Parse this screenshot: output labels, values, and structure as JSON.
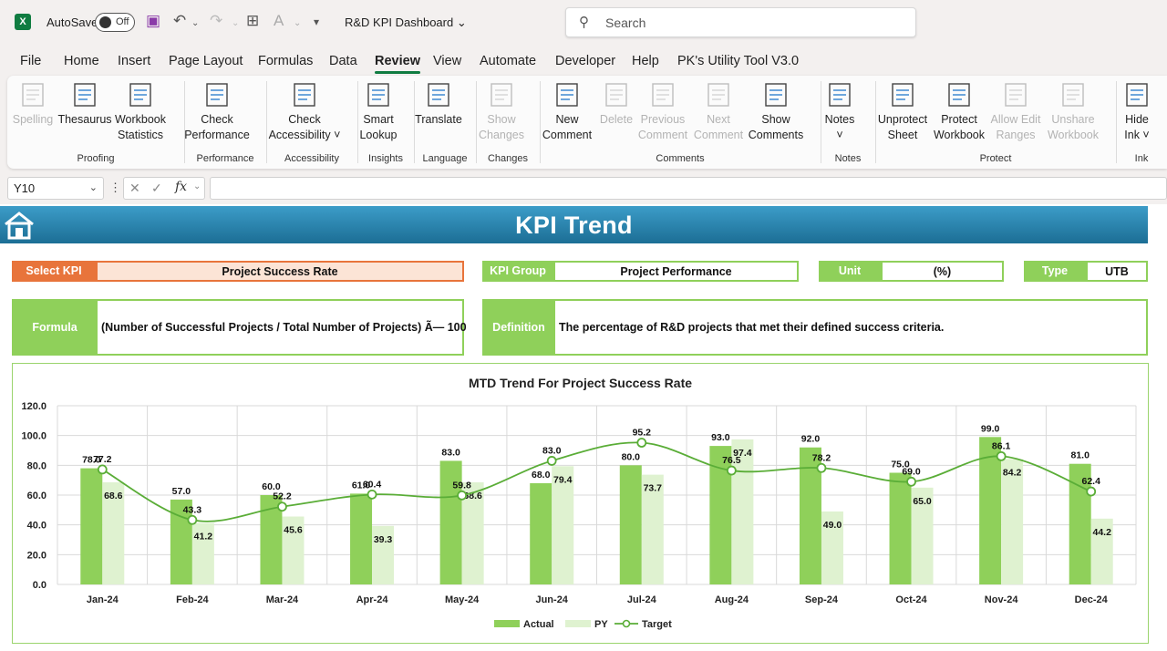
{
  "app": {
    "autosave_label": "AutoSave",
    "autosave_state": "Off",
    "doc_title": "R&D KPI Dashboard",
    "search_placeholder": "Search"
  },
  "menu": [
    "File",
    "Home",
    "Insert",
    "Page Layout",
    "Formulas",
    "Data",
    "Review",
    "View",
    "Automate",
    "Developer",
    "Help",
    "PK's Utility Tool V3.0"
  ],
  "menu_active": "Review",
  "ribbon": {
    "buttons": [
      {
        "label1": "Spelling",
        "label2": "",
        "icon": "spelling-icon",
        "enabled": false
      },
      {
        "label1": "Thesaurus",
        "label2": "",
        "icon": "thesaurus-icon",
        "enabled": true
      },
      {
        "label1": "Workbook",
        "label2": "Statistics",
        "icon": "workbook-statistics-icon",
        "enabled": true
      },
      {
        "label1": "Check",
        "label2": "Performance",
        "icon": "check-performance-icon",
        "enabled": true
      },
      {
        "label1": "Check",
        "label2": "Accessibility ˅",
        "icon": "accessibility-icon",
        "enabled": true
      },
      {
        "label1": "Smart",
        "label2": "Lookup",
        "icon": "smart-lookup-icon",
        "enabled": true
      },
      {
        "label1": "Translate",
        "label2": "",
        "icon": "translate-icon",
        "enabled": true
      },
      {
        "label1": "Show",
        "label2": "Changes",
        "icon": "show-changes-icon",
        "enabled": false
      },
      {
        "label1": "New",
        "label2": "Comment",
        "icon": "new-comment-icon",
        "enabled": true
      },
      {
        "label1": "Delete",
        "label2": "",
        "icon": "delete-comment-icon",
        "enabled": false
      },
      {
        "label1": "Previous",
        "label2": "Comment",
        "icon": "previous-comment-icon",
        "enabled": false
      },
      {
        "label1": "Next",
        "label2": "Comment",
        "icon": "next-comment-icon",
        "enabled": false
      },
      {
        "label1": "Show",
        "label2": "Comments",
        "icon": "show-comments-icon",
        "enabled": true
      },
      {
        "label1": "Notes",
        "label2": "˅",
        "icon": "notes-icon",
        "enabled": true
      },
      {
        "label1": "Unprotect",
        "label2": "Sheet",
        "icon": "unprotect-sheet-icon",
        "enabled": true
      },
      {
        "label1": "Protect",
        "label2": "Workbook",
        "icon": "protect-workbook-icon",
        "enabled": true
      },
      {
        "label1": "Allow Edit",
        "label2": "Ranges",
        "icon": "allow-edit-ranges-icon",
        "enabled": false
      },
      {
        "label1": "Unshare",
        "label2": "Workbook",
        "icon": "unshare-workbook-icon",
        "enabled": false
      },
      {
        "label1": "Hide",
        "label2": "Ink ˅",
        "icon": "hide-ink-icon",
        "enabled": true
      }
    ],
    "groups": [
      "Proofing",
      "Performance",
      "Accessibility",
      "Insights",
      "Language",
      "Changes",
      "Comments",
      "Notes",
      "Protect",
      "Ink"
    ]
  },
  "formula_bar": {
    "name_box": "Y10",
    "fx": "fx",
    "formula": ""
  },
  "dashboard": {
    "title": "KPI Trend",
    "select_kpi_label": "Select KPI",
    "select_kpi_value": "Project Success Rate",
    "kpi_group_label": "KPI Group",
    "kpi_group_value": "Project Performance",
    "unit_label": "Unit",
    "unit_value": "(%)",
    "type_label": "Type",
    "type_value": "UTB",
    "formula_label": "Formula",
    "formula_value": "(Number of Successful Projects / Total Number of Projects) Ã— 100",
    "definition_label": "Definition",
    "definition_value": "The percentage of R&D projects that met their defined success criteria."
  },
  "colors": {
    "actual": "#8fd05a",
    "py": "#dff2d0",
    "target": "#5aad37",
    "accent": "#107c41",
    "select_kpi": "#e8743b"
  },
  "chart_data": {
    "type": "bar",
    "title": "MTD Trend For Project Success Rate",
    "categories": [
      "Jan-24",
      "Feb-24",
      "Mar-24",
      "Apr-24",
      "May-24",
      "Jun-24",
      "Jul-24",
      "Aug-24",
      "Sep-24",
      "Oct-24",
      "Nov-24",
      "Dec-24"
    ],
    "series": [
      {
        "name": "Actual",
        "type": "bar",
        "values": [
          78.0,
          57.0,
          60.0,
          61.0,
          83.0,
          68.0,
          80.0,
          93.0,
          92.0,
          75.0,
          99.0,
          81.0
        ]
      },
      {
        "name": "PY",
        "type": "bar",
        "values": [
          68.6,
          41.2,
          45.6,
          39.3,
          68.6,
          79.4,
          73.7,
          97.4,
          49.0,
          65.0,
          84.2,
          44.2
        ]
      },
      {
        "name": "Target",
        "type": "line",
        "values": [
          77.2,
          43.3,
          52.2,
          60.4,
          59.8,
          83.0,
          95.2,
          76.5,
          78.2,
          69.0,
          86.1,
          62.4
        ]
      }
    ],
    "yticks": [
      "0.0",
      "20.0",
      "40.0",
      "60.0",
      "80.0",
      "100.0",
      "120.0"
    ],
    "ylim": [
      0,
      120
    ],
    "grid": true,
    "legend": "bottom"
  }
}
